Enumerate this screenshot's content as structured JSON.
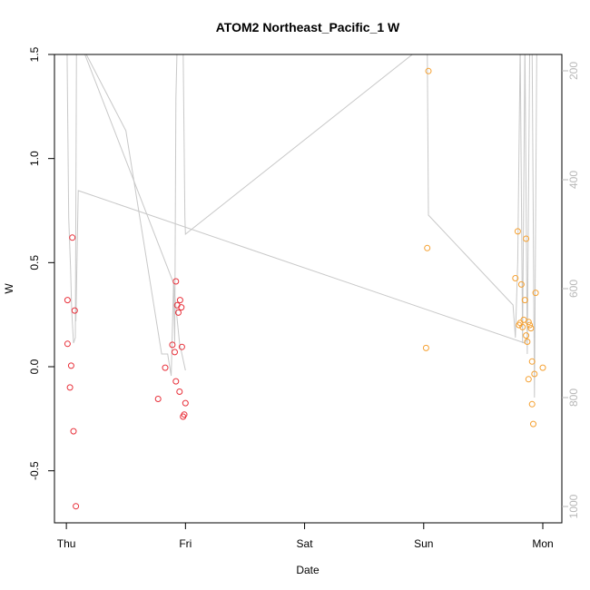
{
  "chart_data": {
    "type": "scatter",
    "title": "ATOM2 Northeast_Pacific_1 W",
    "xlabel": "Date",
    "ylabel": "W",
    "x_ticks": [
      "Thu",
      "Fri",
      "Sat",
      "Sun",
      "Mon"
    ],
    "xlim_days": [
      -0.1,
      4.16
    ],
    "ylim": [
      -0.75,
      1.5
    ],
    "y_ticks": [
      "-0.5",
      "0.0",
      "0.5",
      "1.0",
      "1.5"
    ],
    "y2_ticks": [
      "200",
      "400",
      "600",
      "800",
      "1000"
    ],
    "y2_range_reversed": [
      1030,
      170
    ],
    "colors": {
      "red": "#e8303a",
      "orange": "#f5a030",
      "line": "#c8c8c8",
      "right_axis": "#b8b8b8"
    },
    "series": [
      {
        "color": "red",
        "points": [
          [
            0.01,
            0.32
          ],
          [
            0.01,
            0.11
          ],
          [
            0.03,
            -0.1
          ],
          [
            0.04,
            0.005
          ],
          [
            0.05,
            0.62
          ],
          [
            0.06,
            -0.31
          ],
          [
            0.07,
            0.27
          ],
          [
            0.08,
            -0.67
          ],
          [
            0.77,
            -0.155
          ],
          [
            0.83,
            -0.005
          ],
          [
            0.89,
            0.105
          ],
          [
            0.91,
            0.07
          ],
          [
            0.92,
            0.41
          ],
          [
            0.92,
            -0.07
          ],
          [
            0.93,
            0.295
          ],
          [
            0.94,
            0.26
          ],
          [
            0.95,
            -0.12
          ],
          [
            0.955,
            0.32
          ],
          [
            0.965,
            0.285
          ],
          [
            0.97,
            0.095
          ],
          [
            0.98,
            -0.24
          ],
          [
            0.99,
            -0.23
          ],
          [
            1.0,
            -0.175
          ]
        ]
      },
      {
        "color": "orange",
        "points": [
          [
            3.02,
            0.09
          ],
          [
            3.03,
            0.57
          ],
          [
            3.04,
            1.42
          ],
          [
            3.77,
            0.425
          ],
          [
            3.79,
            0.65
          ],
          [
            3.8,
            0.2
          ],
          [
            3.81,
            0.21
          ],
          [
            3.82,
            0.395
          ],
          [
            3.83,
            0.19
          ],
          [
            3.84,
            0.225
          ],
          [
            3.85,
            0.32
          ],
          [
            3.86,
            0.615
          ],
          [
            3.86,
            0.15
          ],
          [
            3.87,
            0.12
          ],
          [
            3.88,
            -0.06
          ],
          [
            3.88,
            0.215
          ],
          [
            3.89,
            0.2
          ],
          [
            3.9,
            0.185
          ],
          [
            3.91,
            0.025
          ],
          [
            3.91,
            -0.18
          ],
          [
            3.92,
            -0.275
          ],
          [
            3.93,
            -0.035
          ],
          [
            3.94,
            0.355
          ],
          [
            4.0,
            -0.005
          ]
        ]
      }
    ],
    "depth_trace_days": [
      -0.01,
      0.005,
      0.02,
      0.035,
      0.045,
      0.06,
      0.075,
      0.085,
      0.1,
      0.11,
      0.12,
      0.9,
      0.91,
      0.92,
      0.93,
      0.95,
      0.965,
      0.98,
      0.995,
      1.0,
      3.02,
      3.03,
      3.04,
      3.75,
      3.77,
      3.79,
      3.81,
      3.83,
      3.85,
      3.87,
      3.89,
      3.91,
      3.93,
      3.95,
      3.97,
      3.99,
      4.0,
      4.01
    ],
    "depth_trace_m": [
      150,
      150,
      470,
      560,
      640,
      700,
      690,
      150,
      150,
      150,
      150,
      590,
      700,
      250,
      150,
      150,
      150,
      150,
      470,
      500,
      150,
      150,
      465,
      630,
      690,
      550,
      150,
      700,
      150,
      720,
      150,
      150,
      800,
      150,
      150,
      150,
      150,
      150
    ],
    "depth_trace_extra": {
      "fri_night_days": [
        0.12,
        0.5,
        0.8,
        0.85,
        0.88,
        0.9,
        0.95,
        1.0
      ],
      "fri_night_m": [
        150,
        310,
        720,
        720,
        760,
        590,
        700,
        750
      ],
      "long_sweep_days": [
        0.08,
        0.1,
        3.85,
        3.87
      ],
      "long_sweep_m": [
        660,
        420,
        700,
        690
      ]
    }
  }
}
